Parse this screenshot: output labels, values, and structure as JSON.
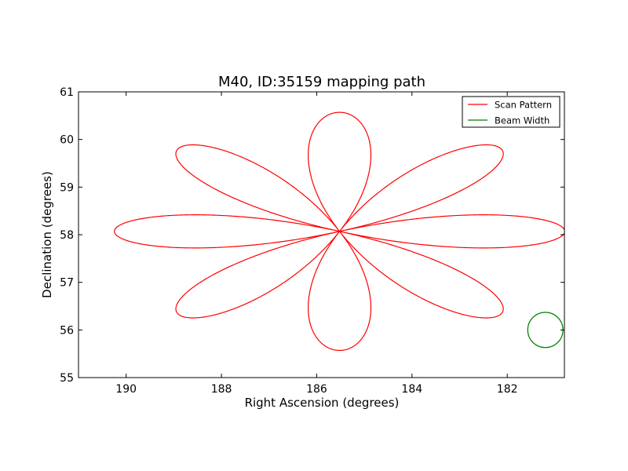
{
  "chart_data": {
    "type": "line",
    "title": "M40, ID:35159 mapping path",
    "xlabel": "Right Ascension (degrees)",
    "ylabel": "Declination (degrees)",
    "xlim": [
      191.0,
      180.8
    ],
    "ylim": [
      55,
      61
    ],
    "xticks": [
      190,
      188,
      186,
      184,
      182
    ],
    "yticks": [
      55,
      56,
      57,
      58,
      59,
      60,
      61
    ],
    "grid": false,
    "legend_position": "top-right",
    "series": [
      {
        "name": "Scan Pattern",
        "kind": "rose",
        "center": [
          185.52,
          58.07
        ],
        "petals": 8,
        "radius_deg": 2.5,
        "color": "#ff0000"
      },
      {
        "name": "Beam Width",
        "kind": "circle",
        "center": [
          181.2,
          56.0
        ],
        "radius_deg": 0.37,
        "color": "#008000"
      }
    ]
  }
}
